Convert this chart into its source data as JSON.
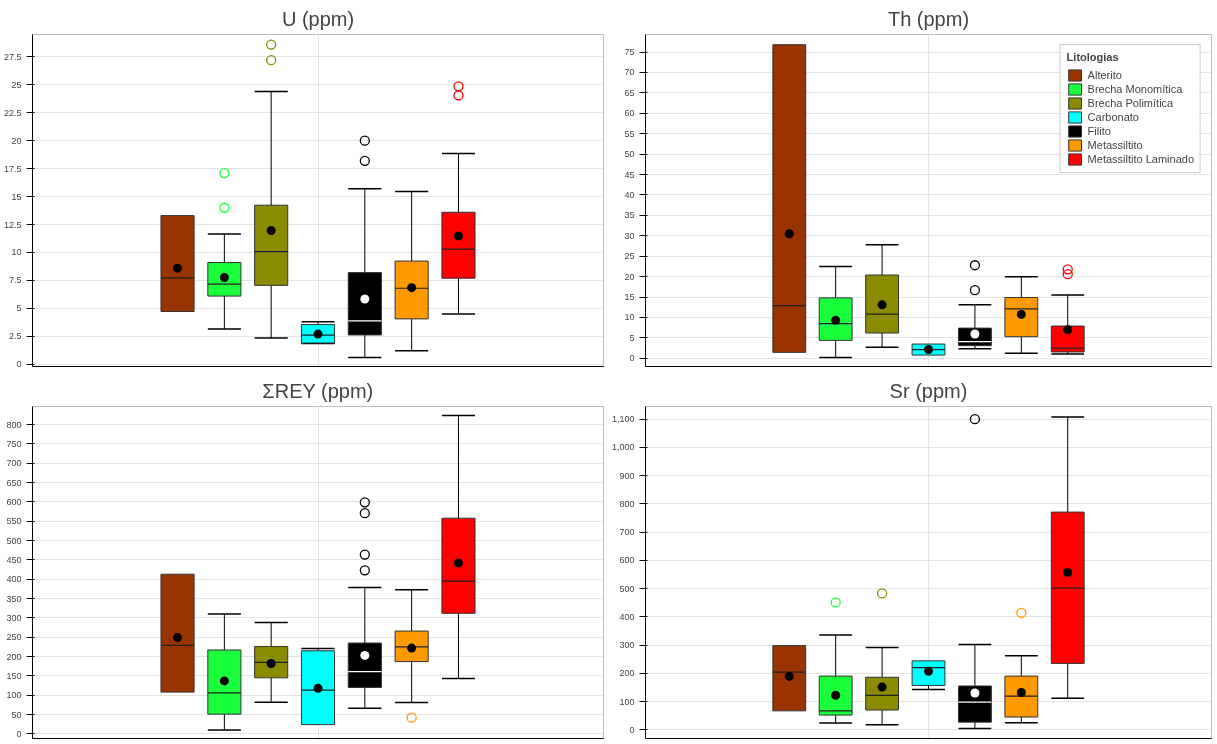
{
  "chart_data": [
    {
      "type": "box",
      "title": "U (ppm)",
      "categories": [
        null
      ],
      "ylim": [
        -0.2,
        29.5
      ],
      "yticks": [
        0,
        2.5,
        5,
        7.5,
        10,
        12.5,
        15,
        17.5,
        20,
        22.5,
        25,
        27.5
      ],
      "grid": true,
      "legend": false,
      "series": [
        {
          "color": "#993300",
          "boxes": [
            {
              "low": 4.72,
              "q1": 4.72,
              "median": 7.73,
              "q3": 13.3,
              "high": 13.3,
              "mean": 8.6
            }
          ]
        },
        {
          "color": "#1aff3c",
          "boxes": [
            {
              "low": 3.15,
              "q1": 6.1,
              "median": 7.17,
              "q3": 9.1,
              "high": 11.65,
              "mean": 7.76,
              "outliers": [
                14.0,
                17.1
              ]
            }
          ]
        },
        {
          "color": "#8b8b00",
          "boxes": [
            {
              "low": 2.34,
              "q1": 7.06,
              "median": 10.07,
              "q3": 14.23,
              "high": 24.4,
              "mean": 11.96,
              "outliers": [
                27.2,
                28.6
              ]
            }
          ]
        },
        {
          "color": "#00ffff",
          "boxes": [
            {
              "low": 1.85,
              "q1": 1.9,
              "median": 2.6,
              "q3": 3.55,
              "high": 3.8,
              "mean": 2.7
            }
          ]
        },
        {
          "color": "#000000",
          "boxes": [
            {
              "low": 0.6,
              "q1": 2.62,
              "median": 3.88,
              "q3": 8.2,
              "high": 15.7,
              "mean": 5.84,
              "outliers": [
                18.2,
                20.0
              ]
            }
          ]
        },
        {
          "color": "#ff9900",
          "boxes": [
            {
              "low": 1.22,
              "q1": 4.06,
              "median": 6.8,
              "q3": 9.23,
              "high": 15.45,
              "mean": 6.85
            }
          ]
        },
        {
          "color": "#ff0000",
          "boxes": [
            {
              "low": 4.5,
              "q1": 7.7,
              "median": 10.3,
              "q3": 13.6,
              "high": 18.85,
              "mean": 11.47,
              "outliers": [
                24.06,
                24.86
              ]
            }
          ]
        }
      ]
    },
    {
      "type": "box",
      "title": "Th (ppm)",
      "categories": [
        null
      ],
      "ylim": [
        -2,
        79.3
      ],
      "yticks": [
        0,
        5,
        10,
        15,
        20,
        25,
        30,
        35,
        40,
        45,
        50,
        55,
        60,
        65,
        70,
        75
      ],
      "grid": true,
      "legend": "top right",
      "legend_title": "Litologias",
      "series": [
        {
          "name": "Alterito",
          "color": "#993300",
          "boxes": [
            {
              "low": 1.47,
              "q1": 1.47,
              "median": 12.9,
              "q3": 76.8,
              "high": 76.8,
              "mean": 30.5
            }
          ]
        },
        {
          "name": "Brecha Monomítica",
          "color": "#1aff3c",
          "boxes": [
            {
              "low": 0.2,
              "q1": 4.4,
              "median": 8.5,
              "q3": 14.8,
              "high": 22.5,
              "mean": 9.3
            }
          ]
        },
        {
          "name": "Brecha Polimítica",
          "color": "#8b8b00",
          "boxes": [
            {
              "low": 2.7,
              "q1": 6.2,
              "median": 10.85,
              "q3": 20.4,
              "high": 27.8,
              "mean": 13.1
            }
          ]
        },
        {
          "name": "Carbonato",
          "color": "#00ffff",
          "boxes": [
            {
              "low": 0.8,
              "q1": 0.8,
              "median": 2.15,
              "q3": 3.5,
              "high": 3.5,
              "mean": 2.15
            }
          ]
        },
        {
          "name": "Filito",
          "color": "#000000",
          "boxes": [
            {
              "low": 2.35,
              "q1": 3.1,
              "median": 4.1,
              "q3": 7.4,
              "high": 13.1,
              "mean": 5.96,
              "outliers": [
                16.7,
                22.8
              ]
            }
          ]
        },
        {
          "name": "Metassiltito",
          "color": "#ff9900",
          "boxes": [
            {
              "low": 1.27,
              "q1": 5.3,
              "median": 12.1,
              "q3": 14.9,
              "high": 20.0,
              "mean": 10.75
            }
          ]
        },
        {
          "name": "Metassiltito Laminado",
          "color": "#ff0000",
          "boxes": [
            {
              "low": 1.07,
              "q1": 1.56,
              "median": 2.5,
              "q3": 7.9,
              "high": 15.5,
              "mean": 7.0,
              "outliers": [
                20.6,
                21.8
              ]
            }
          ]
        }
      ]
    },
    {
      "type": "box",
      "title": "ΣREY (ppm)",
      "categories": [
        null
      ],
      "ylim": [
        -12,
        847
      ],
      "yticks": [
        0,
        50,
        100,
        150,
        200,
        250,
        300,
        350,
        400,
        450,
        500,
        550,
        600,
        650,
        700,
        750,
        800
      ],
      "grid": true,
      "legend": false,
      "series": [
        {
          "color": "#993300",
          "boxes": [
            {
              "low": 108,
              "q1": 108,
              "median": 229,
              "q3": 413,
              "high": 413,
              "mean": 249
            }
          ]
        },
        {
          "color": "#1aff3c",
          "boxes": [
            {
              "low": 10,
              "q1": 51,
              "median": 106,
              "q3": 217,
              "high": 310,
              "mean": 137
            }
          ]
        },
        {
          "color": "#8b8b00",
          "boxes": [
            {
              "low": 82,
              "q1": 145,
              "median": 185,
              "q3": 226,
              "high": 288,
              "mean": 182
            }
          ]
        },
        {
          "color": "#00ffff",
          "boxes": [
            {
              "low": 24,
              "q1": 24,
              "median": 113,
              "q3": 215,
              "high": 221,
              "mean": 118
            }
          ]
        },
        {
          "color": "#000000",
          "boxes": [
            {
              "low": 66,
              "q1": 120,
              "median": 161,
              "q3": 235,
              "high": 379,
              "mean": 203,
              "outliers": [
                423,
                464,
                571,
                599
              ]
            }
          ]
        },
        {
          "color": "#ff9900",
          "boxes": [
            {
              "low": 81,
              "q1": 187,
              "median": 225,
              "q3": 266,
              "high": 373,
              "mean": 222,
              "outliers": [
                42
              ]
            }
          ]
        },
        {
          "color": "#ff0000",
          "boxes": [
            {
              "low": 143,
              "q1": 312,
              "median": 395,
              "q3": 558,
              "high": 824,
              "mean": 442
            }
          ]
        }
      ]
    },
    {
      "type": "box",
      "title": "Sr (ppm)",
      "categories": [
        null
      ],
      "ylim": [
        -31,
        1145
      ],
      "yticks": [
        0,
        100,
        200,
        300,
        400,
        500,
        600,
        700,
        800,
        900,
        {
          "value": 1000,
          "label": "1,000"
        },
        {
          "value": 1100,
          "label": "1,100"
        }
      ],
      "grid": true,
      "legend": false,
      "series": [
        {
          "color": "#993300",
          "boxes": [
            {
              "low": 67,
              "q1": 67,
              "median": 204,
              "q3": 298,
              "high": 298,
              "mean": 189
            }
          ]
        },
        {
          "color": "#1aff3c",
          "boxes": [
            {
              "low": 24,
              "q1": 52,
              "median": 67,
              "q3": 190,
              "high": 336,
              "mean": 122,
              "outliers": [
                451
              ]
            }
          ]
        },
        {
          "color": "#8b8b00",
          "boxes": [
            {
              "low": 18,
              "q1": 70,
              "median": 122,
              "q3": 186,
              "high": 291,
              "mean": 151,
              "outliers": [
                483
              ]
            }
          ]
        },
        {
          "color": "#00ffff",
          "boxes": [
            {
              "low": 143,
              "q1": 157,
              "median": 220,
              "q3": 244,
              "high": 244,
              "mean": 207
            }
          ]
        },
        {
          "color": "#000000",
          "boxes": [
            {
              "low": 4,
              "q1": 27,
              "median": 98,
              "q3": 155,
              "high": 302,
              "mean": 130,
              "outliers": [
                1100
              ]
            }
          ]
        },
        {
          "color": "#ff9900",
          "boxes": [
            {
              "low": 25,
              "q1": 45,
              "median": 119,
              "q3": 190,
              "high": 262,
              "mean": 132,
              "outliers": [
                414
              ]
            }
          ]
        },
        {
          "color": "#ff0000",
          "boxes": [
            {
              "low": 112,
              "q1": 235,
              "median": 502,
              "q3": 771,
              "high": 1108,
              "mean": 557
            }
          ]
        }
      ]
    }
  ]
}
